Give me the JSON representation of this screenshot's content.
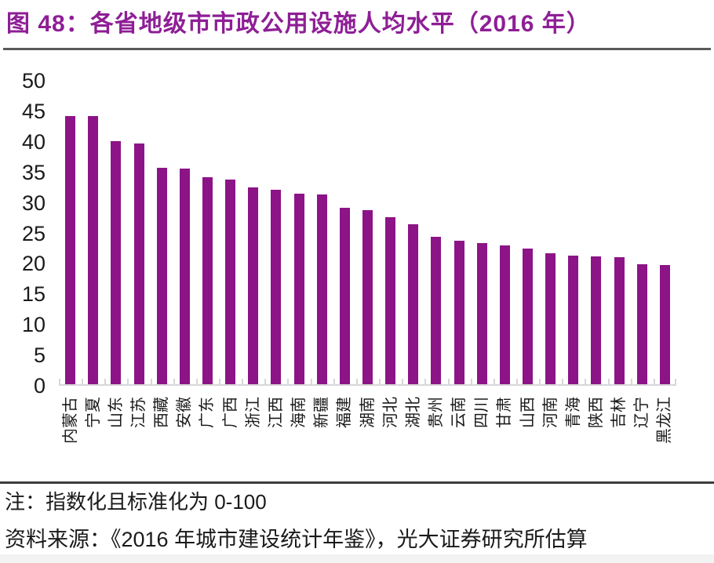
{
  "header": {
    "title": "图 48：各省地级市市政公用设施人均水平（2016 年）"
  },
  "chart_data": {
    "type": "bar",
    "title": "各省地级市市政公用设施人均水平（2016 年）",
    "xlabel": "",
    "ylabel": "",
    "categories": [
      "内蒙古",
      "宁夏",
      "山东",
      "江苏",
      "西藏",
      "安徽",
      "广东",
      "广西",
      "浙江",
      "江西",
      "海南",
      "新疆",
      "福建",
      "湖南",
      "河北",
      "湖北",
      "贵州",
      "云南",
      "四川",
      "甘肃",
      "山西",
      "河南",
      "青海",
      "陕西",
      "吉林",
      "辽宁",
      "黑龙江"
    ],
    "values": [
      44,
      43.9,
      39.8,
      39.4,
      35.5,
      35.3,
      33.9,
      33.5,
      32.2,
      31.9,
      31.2,
      31.1,
      28.9,
      28.5,
      27.4,
      26.2,
      24.2,
      23.5,
      23.2,
      22.7,
      22.3,
      21.5,
      21.1,
      21.0,
      20.8,
      19.7,
      19.6
    ],
    "ylim": [
      0,
      50
    ],
    "ytick_interval": 5,
    "grid": false,
    "legend_position": "none",
    "bar_color": "#8C1487",
    "axis_color": "#D7D7D7"
  },
  "notes": {
    "note": "注：指数化且标准化为 0-100",
    "source": "资料来源：《2016 年城市建设统计年鉴》，光大证券研究所估算"
  },
  "colors": {
    "title": "#8E1E96",
    "text": "#1a1a1a",
    "title_rule": "#595959",
    "notes_rule": "#3d3d3d",
    "footer_strip": "#F3F3F3"
  }
}
